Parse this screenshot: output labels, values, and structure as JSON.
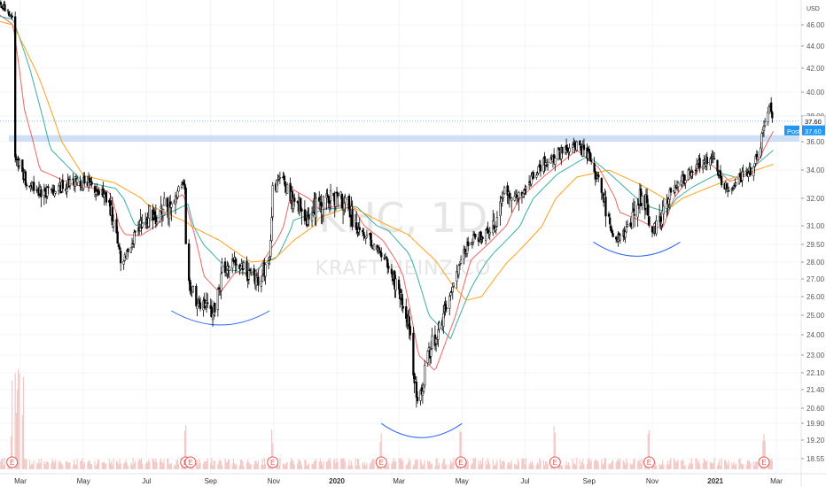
{
  "watermark": {
    "symbol": "KHC, 1D",
    "name": "KRAFT HEINZ CO"
  },
  "currency": "USD",
  "price_tags": {
    "last": "37.60",
    "post_label": "Post",
    "post_value": "37.60"
  },
  "earnings_label": "E",
  "colors": {
    "up": "#ffffff",
    "down": "#000000",
    "wick": "#000000",
    "ma_fast": "#ef5350",
    "ma_mid": "#26a69a",
    "ma_slow": "#ff9800",
    "zone": "#c5d9f5",
    "arc": "#2962ff",
    "price_line": "#2196f3",
    "volume": "#f2c8c6",
    "earnings": "#e0554f"
  },
  "chart_data": {
    "type": "candlestick",
    "y_ticks": [
      "18.55",
      "19.20",
      "19.90",
      "20.60",
      "21.40",
      "22.10",
      "23.00",
      "24.00",
      "25.00",
      "26.00",
      "27.00",
      "28.00",
      "29.50",
      "31.00",
      "32.00",
      "34.00",
      "36.00",
      "38.00",
      "40.00",
      "42.00",
      "44.00",
      "46.00"
    ],
    "x_ticks": [
      "Mar",
      "May",
      "Jul",
      "Sep",
      "Nov",
      "2020",
      "Mar",
      "May",
      "Jul",
      "Sep",
      "Nov",
      "2021",
      "Mar"
    ],
    "resistance_zone": [
      36.0,
      36.5
    ],
    "last_price": 37.6,
    "earnings_dates": [
      "2019-02-21",
      "2019-08-08",
      "2019-08-09",
      "2019-10-31",
      "2020-02-13",
      "2020-04-30",
      "2020-07-30",
      "2020-10-29",
      "2021-02-17"
    ],
    "price_key_points": [
      [
        "2019-02-01",
        48.5
      ],
      [
        "2019-02-21",
        46.8
      ],
      [
        "2019-02-22",
        35.5
      ],
      [
        "2019-03-08",
        33.0
      ],
      [
        "2019-03-25",
        32.4
      ],
      [
        "2019-04-10",
        32.8
      ],
      [
        "2019-04-25",
        33.2
      ],
      [
        "2019-05-05",
        33.0
      ],
      [
        "2019-05-20",
        32.2
      ],
      [
        "2019-05-31",
        31.0
      ],
      [
        "2019-06-07",
        27.8
      ],
      [
        "2019-06-14",
        29.4
      ],
      [
        "2019-06-25",
        30.8
      ],
      [
        "2019-07-08",
        31.5
      ],
      [
        "2019-07-22",
        31.6
      ],
      [
        "2019-08-01",
        32.5
      ],
      [
        "2019-08-07",
        32.9
      ],
      [
        "2019-08-08",
        29.8
      ],
      [
        "2019-08-09",
        27.0
      ],
      [
        "2019-08-20",
        25.6
      ],
      [
        "2019-09-05",
        25.2
      ],
      [
        "2019-09-12",
        27.5
      ],
      [
        "2019-09-25",
        28.0
      ],
      [
        "2019-10-08",
        27.3
      ],
      [
        "2019-10-16",
        27.0
      ],
      [
        "2019-10-28",
        28.0
      ],
      [
        "2019-10-31",
        32.6
      ],
      [
        "2019-11-08",
        33.5
      ],
      [
        "2019-11-20",
        31.8
      ],
      [
        "2019-12-05",
        31.3
      ],
      [
        "2019-12-20",
        32.0
      ],
      [
        "2020-01-01",
        32.2
      ],
      [
        "2020-01-10",
        31.8
      ],
      [
        "2020-01-22",
        30.8
      ],
      [
        "2020-02-03",
        29.8
      ],
      [
        "2020-02-13",
        28.7
      ],
      [
        "2020-02-24",
        27.2
      ],
      [
        "2020-03-02",
        26.0
      ],
      [
        "2020-03-10",
        24.8
      ],
      [
        "2020-03-17",
        21.5
      ],
      [
        "2020-03-20",
        20.2
      ],
      [
        "2020-03-27",
        22.8
      ],
      [
        "2020-04-10",
        24.5
      ],
      [
        "2020-04-20",
        26.0
      ],
      [
        "2020-04-30",
        28.5
      ],
      [
        "2020-05-10",
        29.8
      ],
      [
        "2020-05-20",
        30.3
      ],
      [
        "2020-06-05",
        31.3
      ],
      [
        "2020-06-12",
        32.8
      ],
      [
        "2020-06-20",
        32.0
      ],
      [
        "2020-07-01",
        32.6
      ],
      [
        "2020-07-10",
        33.8
      ],
      [
        "2020-07-20",
        34.5
      ],
      [
        "2020-07-30",
        35.0
      ],
      [
        "2020-08-10",
        35.3
      ],
      [
        "2020-08-20",
        35.8
      ],
      [
        "2020-08-31",
        35.0
      ],
      [
        "2020-09-10",
        33.2
      ],
      [
        "2020-09-20",
        31.0
      ],
      [
        "2020-09-30",
        29.8
      ],
      [
        "2020-10-08",
        30.8
      ],
      [
        "2020-10-20",
        32.2
      ],
      [
        "2020-10-27",
        31.8
      ],
      [
        "2020-10-30",
        30.3
      ],
      [
        "2020-11-06",
        31.0
      ],
      [
        "2020-11-16",
        32.0
      ],
      [
        "2020-11-25",
        32.8
      ],
      [
        "2020-12-08",
        34.0
      ],
      [
        "2020-12-18",
        34.7
      ],
      [
        "2020-12-31",
        34.5
      ],
      [
        "2021-01-08",
        33.2
      ],
      [
        "2021-01-15",
        32.6
      ],
      [
        "2021-01-22",
        33.3
      ],
      [
        "2021-02-05",
        34.0
      ],
      [
        "2021-02-10",
        34.7
      ],
      [
        "2021-02-16",
        36.5
      ],
      [
        "2021-02-22",
        38.9
      ],
      [
        "2021-02-26",
        37.6
      ]
    ],
    "moving_averages": {
      "ma_fast_key_points": [
        [
          "2019-02-01",
          47.5
        ],
        [
          "2019-02-22",
          46.0
        ],
        [
          "2019-03-05",
          38.5
        ],
        [
          "2019-03-20",
          34.0
        ],
        [
          "2019-04-20",
          33.0
        ],
        [
          "2019-05-25",
          32.5
        ],
        [
          "2019-06-10",
          30.3
        ],
        [
          "2019-06-25",
          30.2
        ],
        [
          "2019-07-20",
          31.5
        ],
        [
          "2019-08-05",
          32.3
        ],
        [
          "2019-08-15",
          30.8
        ],
        [
          "2019-08-25",
          27.2
        ],
        [
          "2019-09-10",
          26.2
        ],
        [
          "2019-09-25",
          27.4
        ],
        [
          "2019-10-15",
          27.2
        ],
        [
          "2019-11-05",
          30.0
        ],
        [
          "2019-11-20",
          32.6
        ],
        [
          "2019-12-15",
          31.6
        ],
        [
          "2020-01-15",
          31.8
        ],
        [
          "2020-02-15",
          29.8
        ],
        [
          "2020-03-05",
          27.2
        ],
        [
          "2020-03-20",
          23.0
        ],
        [
          "2020-04-05",
          22.2
        ],
        [
          "2020-04-25",
          25.0
        ],
        [
          "2020-05-10",
          28.2
        ],
        [
          "2020-06-01",
          30.0
        ],
        [
          "2020-06-20",
          31.6
        ],
        [
          "2020-07-20",
          33.6
        ],
        [
          "2020-08-20",
          35.4
        ],
        [
          "2020-09-10",
          34.2
        ],
        [
          "2020-09-30",
          31.5
        ],
        [
          "2020-10-20",
          31.2
        ],
        [
          "2020-11-10",
          30.8
        ],
        [
          "2020-12-05",
          33.3
        ],
        [
          "2020-12-25",
          34.6
        ],
        [
          "2021-01-15",
          33.2
        ],
        [
          "2021-02-05",
          33.7
        ],
        [
          "2021-02-26",
          36.8
        ]
      ],
      "ma_mid_key_points": [
        [
          "2019-02-01",
          47.0
        ],
        [
          "2019-02-22",
          46.5
        ],
        [
          "2019-03-10",
          42.0
        ],
        [
          "2019-03-30",
          35.5
        ],
        [
          "2019-04-30",
          33.2
        ],
        [
          "2019-06-01",
          32.7
        ],
        [
          "2019-06-20",
          31.0
        ],
        [
          "2019-07-20",
          31.4
        ],
        [
          "2019-08-10",
          31.8
        ],
        [
          "2019-08-25",
          29.5
        ],
        [
          "2019-09-15",
          27.6
        ],
        [
          "2019-10-10",
          27.3
        ],
        [
          "2019-11-05",
          28.5
        ],
        [
          "2019-11-20",
          31.2
        ],
        [
          "2019-12-20",
          31.6
        ],
        [
          "2020-01-20",
          31.7
        ],
        [
          "2020-02-20",
          30.6
        ],
        [
          "2020-03-10",
          28.8
        ],
        [
          "2020-03-30",
          25.0
        ],
        [
          "2020-04-20",
          23.8
        ],
        [
          "2020-05-10",
          26.5
        ],
        [
          "2020-06-01",
          28.8
        ],
        [
          "2020-07-01",
          31.4
        ],
        [
          "2020-08-01",
          33.7
        ],
        [
          "2020-08-31",
          35.0
        ],
        [
          "2020-09-20",
          33.8
        ],
        [
          "2020-10-20",
          31.8
        ],
        [
          "2020-11-15",
          31.5
        ],
        [
          "2020-12-10",
          32.8
        ],
        [
          "2021-01-05",
          33.8
        ],
        [
          "2021-01-25",
          33.4
        ],
        [
          "2021-02-26",
          35.4
        ]
      ],
      "ma_slow_key_points": [
        [
          "2019-02-01",
          46.5
        ],
        [
          "2019-02-22",
          46.0
        ],
        [
          "2019-03-20",
          41.0
        ],
        [
          "2019-04-10",
          36.0
        ],
        [
          "2019-05-01",
          33.6
        ],
        [
          "2019-05-31",
          33.1
        ],
        [
          "2019-07-01",
          31.8
        ],
        [
          "2019-08-10",
          31.1
        ],
        [
          "2019-09-10",
          29.8
        ],
        [
          "2019-10-10",
          28.0
        ],
        [
          "2019-11-01",
          28.2
        ],
        [
          "2019-11-20",
          29.8
        ],
        [
          "2019-12-15",
          31.3
        ],
        [
          "2020-01-15",
          31.7
        ],
        [
          "2020-02-20",
          31.0
        ],
        [
          "2020-03-10",
          30.3
        ],
        [
          "2020-04-01",
          28.5
        ],
        [
          "2020-04-20",
          26.8
        ],
        [
          "2020-05-05",
          25.8
        ],
        [
          "2020-05-20",
          26.0
        ],
        [
          "2020-06-20",
          28.5
        ],
        [
          "2020-07-20",
          31.2
        ],
        [
          "2020-08-20",
          33.5
        ],
        [
          "2020-09-20",
          34.0
        ],
        [
          "2020-10-20",
          33.0
        ],
        [
          "2020-11-20",
          31.7
        ],
        [
          "2020-12-20",
          32.6
        ],
        [
          "2021-01-20",
          33.5
        ],
        [
          "2021-02-26",
          34.4
        ]
      ]
    },
    "arcs": [
      [
        "2019-07-25",
        "2019-10-28",
        24.5
      ],
      [
        "2020-02-13",
        "2020-05-01",
        19.3
      ],
      [
        "2020-09-05",
        "2020-11-28",
        28.5
      ]
    ]
  }
}
